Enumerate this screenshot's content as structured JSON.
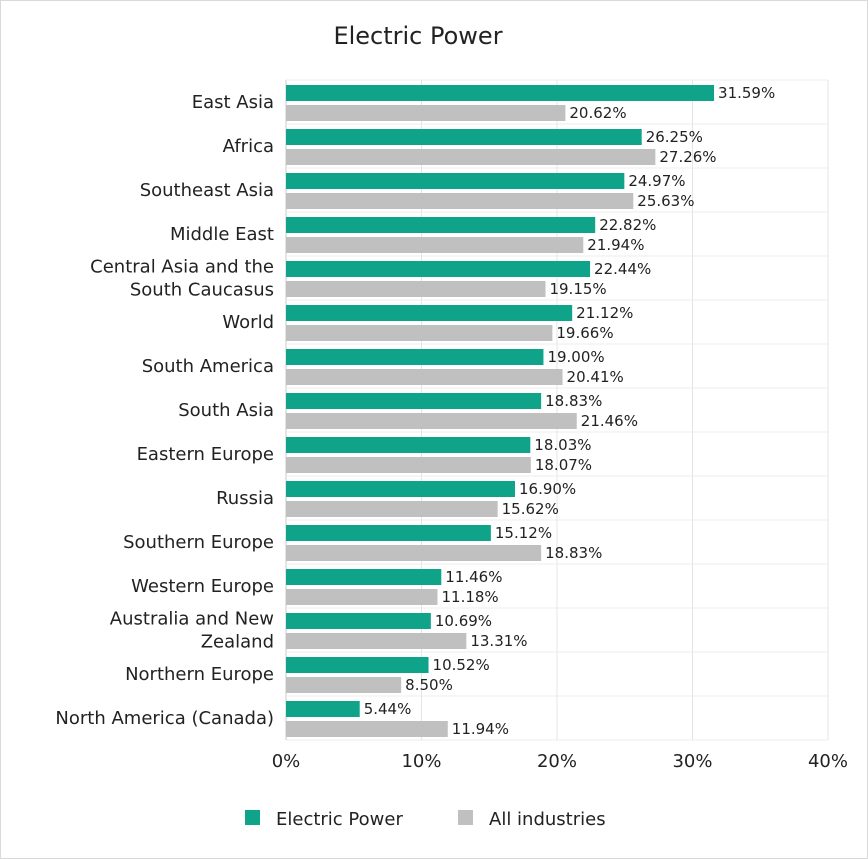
{
  "chart_data": {
    "type": "bar",
    "orientation": "horizontal",
    "title": "Electric Power",
    "categories": [
      "East Asia",
      "Africa",
      "Southeast Asia",
      "Middle East",
      "Central Asia and the South Caucasus",
      "World",
      "South America",
      "South Asia",
      "Eastern Europe",
      "Russia",
      "Southern Europe",
      "Western Europe",
      "Australia and New Zealand",
      "Northern Europe",
      "North America (Canada)"
    ],
    "category_lines": [
      [
        "East Asia"
      ],
      [
        "Africa"
      ],
      [
        "Southeast Asia"
      ],
      [
        "Middle East"
      ],
      [
        "Central Asia and the",
        "South Caucasus"
      ],
      [
        "World"
      ],
      [
        "South America"
      ],
      [
        "South Asia"
      ],
      [
        "Eastern Europe"
      ],
      [
        "Russia"
      ],
      [
        "Southern Europe"
      ],
      [
        "Western Europe"
      ],
      [
        "Australia and New",
        "Zealand"
      ],
      [
        "Northern Europe"
      ],
      [
        "North America (Canada)"
      ]
    ],
    "series": [
      {
        "name": "Electric Power",
        "color": "#0fa38a",
        "values": [
          31.59,
          26.25,
          24.97,
          22.82,
          22.44,
          21.12,
          19.0,
          18.83,
          18.03,
          16.9,
          15.12,
          11.46,
          10.69,
          10.52,
          5.44
        ],
        "labels": [
          "31.59%",
          "26.25%",
          "24.97%",
          "22.82%",
          "22.44%",
          "21.12%",
          "19.00%",
          "18.83%",
          "18.03%",
          "16.90%",
          "15.12%",
          "11.46%",
          "10.69%",
          "10.52%",
          "5.44%"
        ]
      },
      {
        "name": "All industries",
        "color": "#c0c0c0",
        "values": [
          20.62,
          27.26,
          25.63,
          21.94,
          19.15,
          19.66,
          20.41,
          21.46,
          18.07,
          15.62,
          18.83,
          11.18,
          13.31,
          8.5,
          11.94
        ],
        "labels": [
          "20.62%",
          "27.26%",
          "25.63%",
          "21.94%",
          "19.15%",
          "19.66%",
          "20.41%",
          "21.46%",
          "18.07%",
          "15.62%",
          "18.83%",
          "11.18%",
          "13.31%",
          "8.50%",
          "11.94%"
        ]
      }
    ],
    "xlim": [
      0,
      40
    ],
    "xticks": [
      0,
      10,
      20,
      30,
      40
    ],
    "xtick_labels": [
      "0%",
      "10%",
      "20%",
      "30%",
      "40%"
    ],
    "xlabel": "",
    "ylabel": "",
    "grid": true,
    "legend_position": "bottom-center"
  }
}
